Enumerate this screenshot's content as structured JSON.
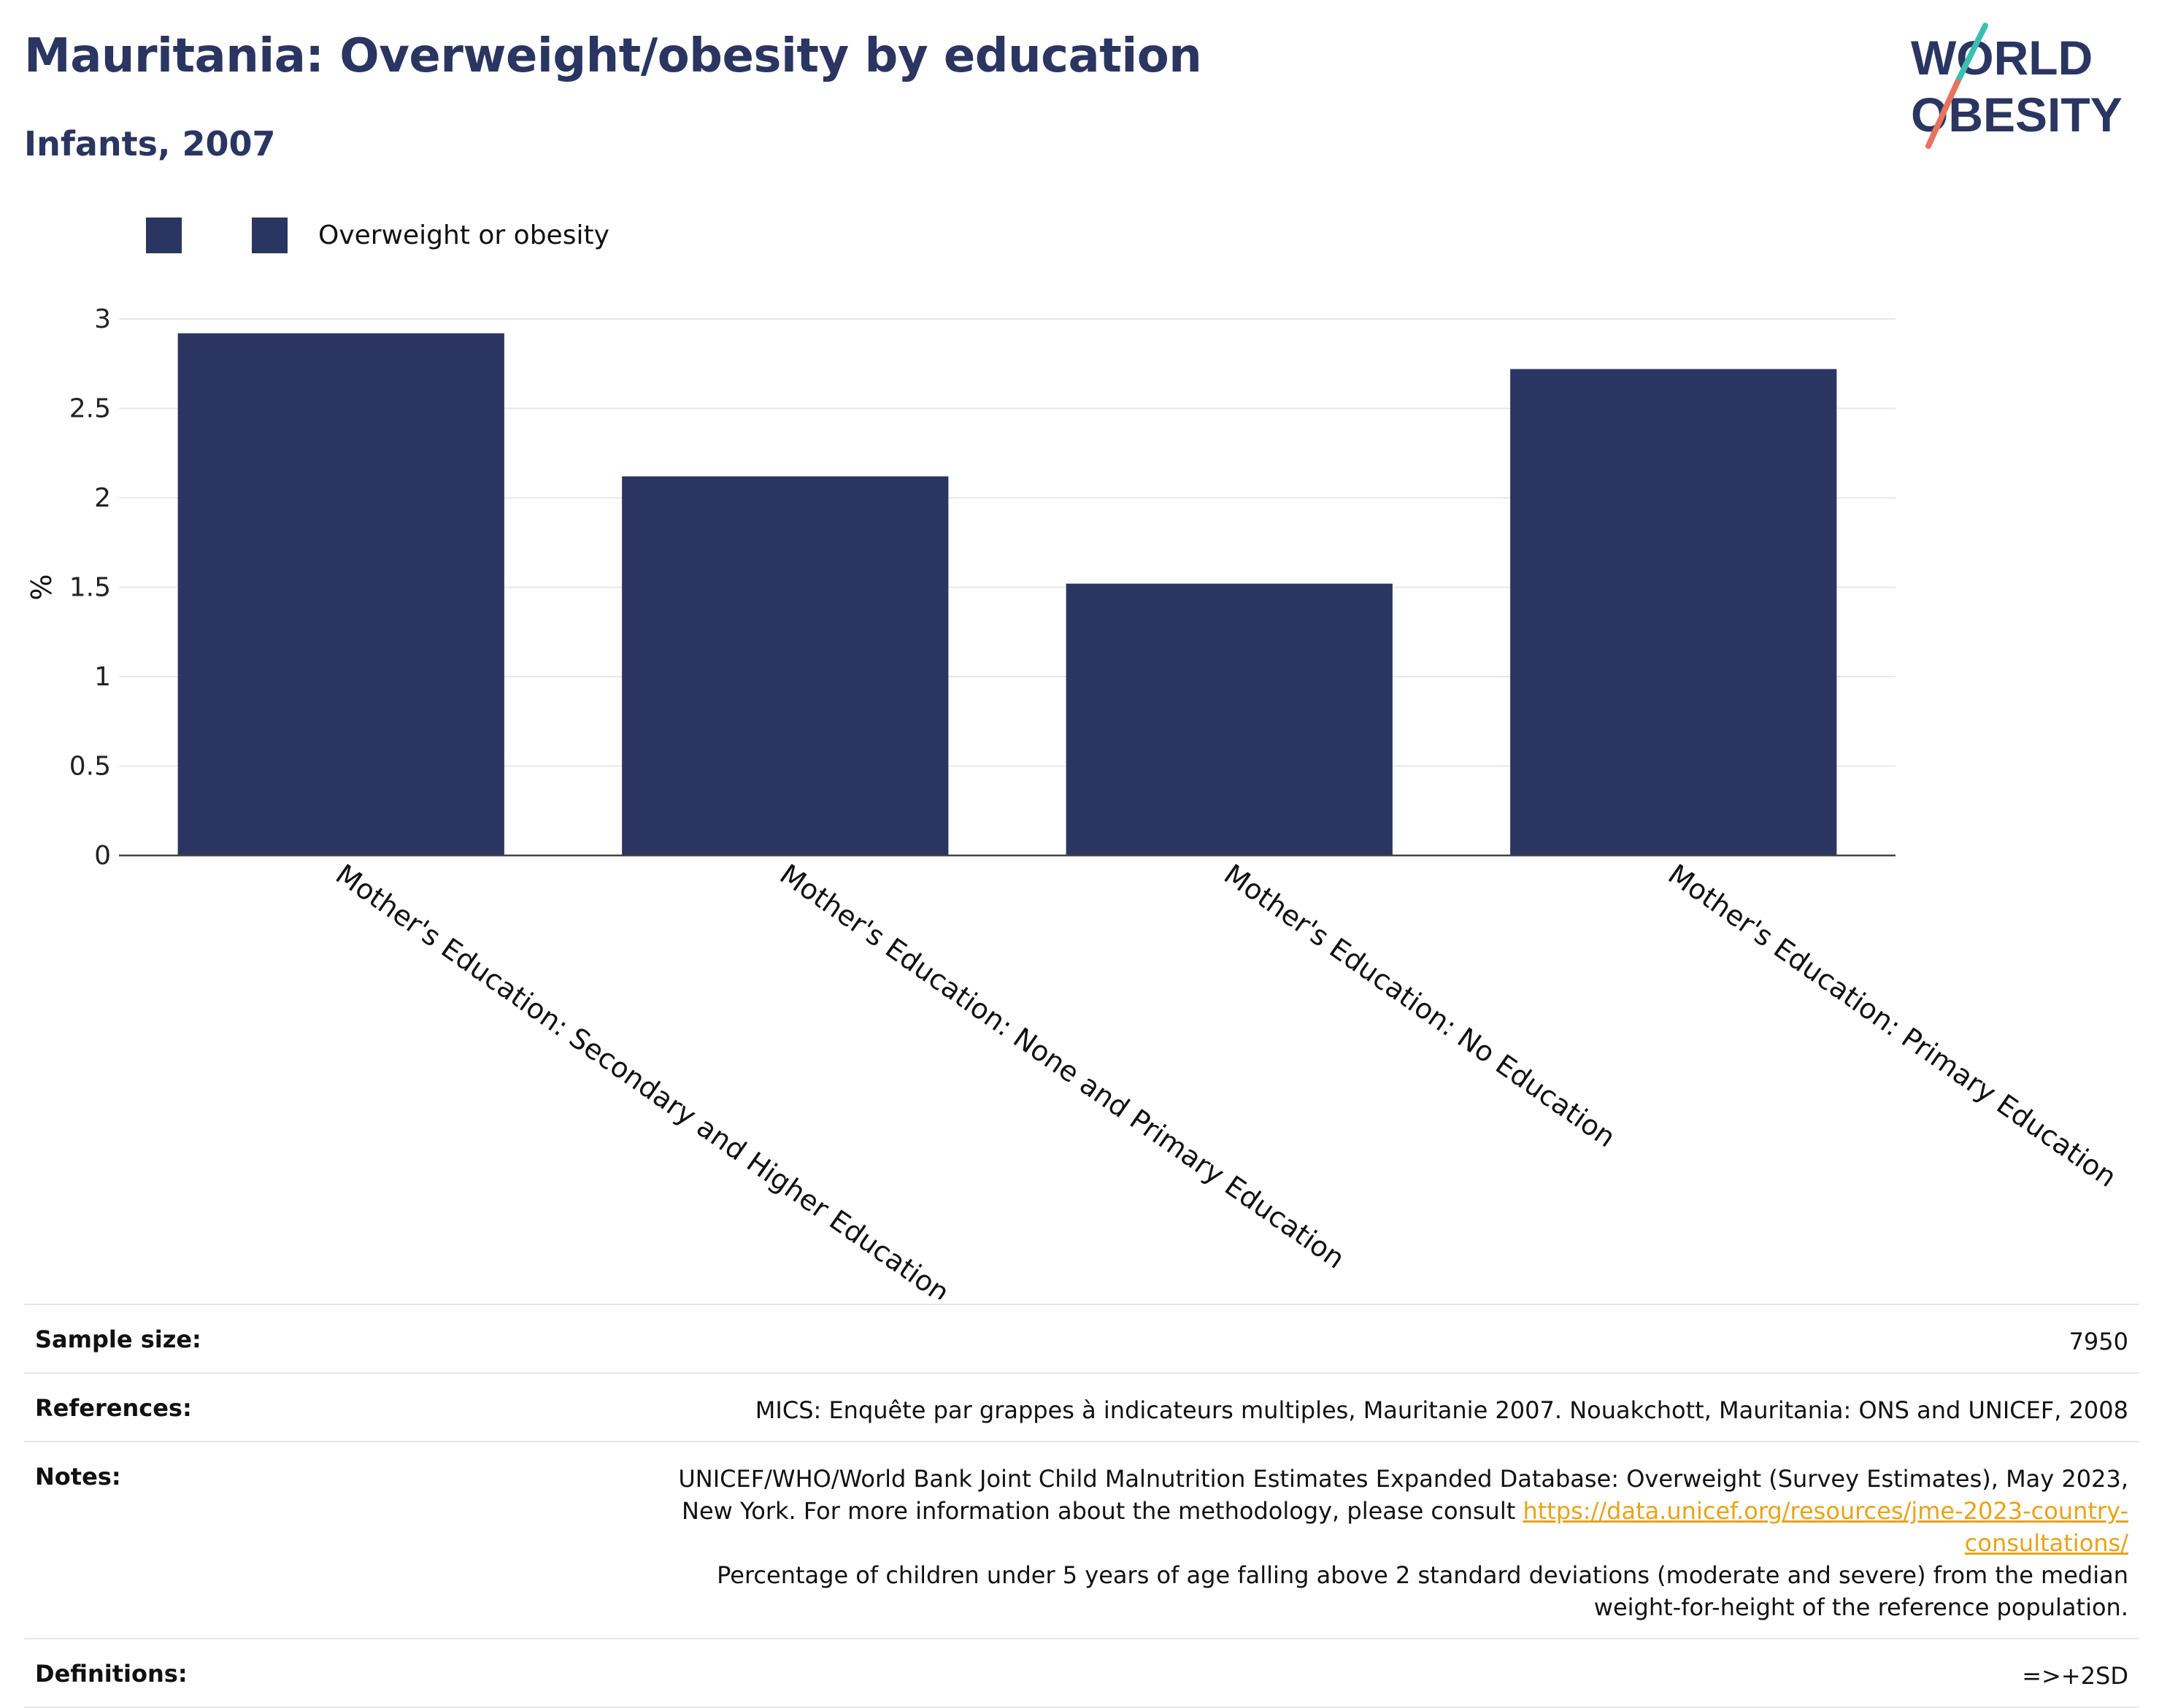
{
  "header": {
    "title": "Mauritania: Overweight/obesity by education",
    "subtitle": "Infants, 2007"
  },
  "logo": {
    "line1": "WORLD",
    "line2": "OBESITY"
  },
  "legend": {
    "label": "Overweight or obesity"
  },
  "colors": {
    "bar": "#2a3561",
    "title": "#2a3561",
    "link": "#e8a317",
    "logo_teal": "#3bbfb3",
    "logo_coral": "#e8735f"
  },
  "chart_data": {
    "type": "bar",
    "categories": [
      "Mother's Education: Secondary and Higher Education",
      "Mother's Education: None and Primary Education",
      "Mother's Education: No Education",
      "Mother's Education: Primary Education"
    ],
    "series": [
      {
        "name": "Overweight or obesity",
        "values": [
          2.92,
          2.12,
          1.52,
          2.72
        ]
      }
    ],
    "ylabel": "%",
    "ylim": [
      0,
      3
    ],
    "yticks": [
      0,
      0.5,
      1,
      1.5,
      2,
      2.5,
      3
    ],
    "ytick_labels": [
      "0",
      "0.5",
      "1",
      "1.5",
      "2",
      "2.5",
      "3"
    ],
    "grid": true,
    "legend_position": "top-left"
  },
  "info_table": {
    "sample_size": {
      "label": "Sample size:",
      "value": "7950"
    },
    "references": {
      "label": "References:",
      "value": "MICS: Enquête par grappes à indicateurs multiples, Mauritanie 2007. Nouakchott, Mauritania: ONS and UNICEF, 2008"
    },
    "notes": {
      "label": "Notes:",
      "text_before": "UNICEF/WHO/World Bank Joint Child Malnutrition Estimates Expanded Database: Overweight (Survey Estimates), May 2023, New York. For more information about the methodology, please consult",
      "link": "https://data.unicef.org/resources/jme-2023-country-consultations/",
      "text_after": "Percentage of children under 5 years of age falling above 2 standard deviations (moderate and severe) from the median weight-for-height of the reference population."
    },
    "definitions": {
      "label": "Definitions:",
      "value": "=>+2SD"
    }
  }
}
